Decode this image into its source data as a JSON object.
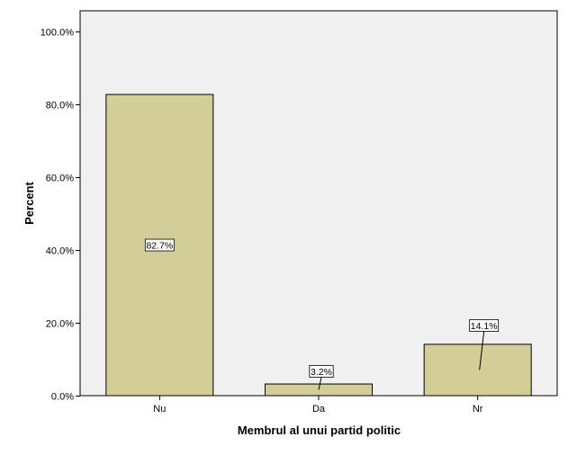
{
  "chart_data": {
    "type": "bar",
    "categories": [
      "Nu",
      "Da",
      "Nr"
    ],
    "values": [
      82.7,
      3.2,
      14.1
    ],
    "data_labels": [
      "82.7%",
      "3.2%",
      "14.1%"
    ],
    "xlabel": "Membrul al unui partid politic",
    "ylabel": "Percent",
    "ylim": [
      0,
      100
    ],
    "yticks": [
      0,
      20,
      40,
      60,
      80,
      100
    ],
    "ytick_labels": [
      "0.0%",
      "20.0%",
      "40.0%",
      "60.0%",
      "80.0%",
      "100.0%"
    ],
    "grid": false,
    "legend": "none",
    "colors": {
      "plot_background": "#f0f0f0",
      "bar_fill": "#d3ce97",
      "bar_stroke": "#000000"
    }
  }
}
